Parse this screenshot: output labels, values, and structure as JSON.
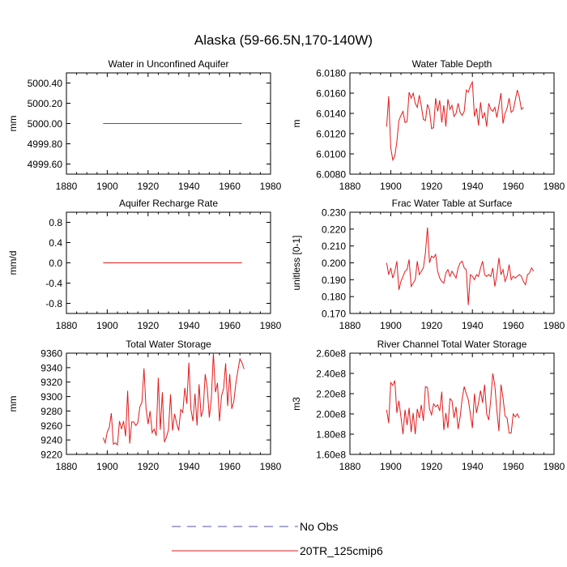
{
  "title": "Alaska (59-66.5N,170-140W)",
  "legend": {
    "entries": [
      {
        "label": "No Obs",
        "style": "dashed",
        "color": "#5555aa"
      },
      {
        "label": "20TR_125cmip6",
        "style": "solid",
        "color": "#e41a1c"
      }
    ]
  },
  "colors": {
    "series": "#e41a1c",
    "obs": "#5555aa",
    "axis": "#000000"
  },
  "chart_data": [
    {
      "type": "line",
      "title": "Water in Unconfined Aquifer",
      "xlabel": "",
      "ylabel": "mm",
      "xlim": [
        1880,
        1980
      ],
      "ylim": [
        4999.5,
        5000.5
      ],
      "xticks": [
        1880,
        1900,
        1920,
        1940,
        1960,
        1980
      ],
      "yticks": [
        4999.6,
        4999.8,
        5000.0,
        5000.2,
        5000.4
      ],
      "ytick_labels": [
        "4999.60",
        "4999.80",
        "5000.00",
        "5000.20",
        "5000.40"
      ],
      "x": [
        1898,
        1966
      ],
      "series": [
        {
          "name": "20TR_125cmip6",
          "values": [
            5000.0,
            5000.0
          ]
        }
      ]
    },
    {
      "type": "line",
      "title": "Water Table Depth",
      "xlabel": "",
      "ylabel": "m",
      "xlim": [
        1880,
        1980
      ],
      "ylim": [
        6.008,
        6.018
      ],
      "xticks": [
        1880,
        1900,
        1920,
        1940,
        1960,
        1980
      ],
      "yticks": [
        6.008,
        6.01,
        6.012,
        6.014,
        6.016,
        6.018
      ],
      "ytick_labels": [
        "6.0080",
        "6.0100",
        "6.0120",
        "6.0140",
        "6.0160",
        "6.0180"
      ],
      "x_start": 1898,
      "series": [
        {
          "name": "20TR_125cmip6",
          "values": [
            6.0127,
            6.0157,
            6.0106,
            6.0094,
            6.0098,
            6.0112,
            6.0133,
            6.0138,
            6.0142,
            6.0131,
            6.0132,
            6.0161,
            6.0155,
            6.016,
            6.015,
            6.0146,
            6.0158,
            6.0147,
            6.0134,
            6.0133,
            6.0149,
            6.0143,
            6.0125,
            6.0126,
            6.0155,
            6.0142,
            6.0153,
            6.0131,
            6.0148,
            6.0127,
            6.0154,
            6.0144,
            6.0148,
            6.0137,
            6.014,
            6.015,
            6.0141,
            6.0138,
            6.0142,
            6.0163,
            6.0161,
            6.0167,
            6.0171,
            6.0137,
            6.0145,
            6.0128,
            6.0151,
            6.0135,
            6.0141,
            6.0127,
            6.015,
            6.0144,
            6.0142,
            6.0146,
            6.0136,
            6.0148,
            6.016,
            6.013,
            6.014,
            6.0145,
            6.0155,
            6.0141,
            6.0143,
            6.0153,
            6.0163,
            6.0156,
            6.0144,
            6.0146
          ]
        }
      ]
    },
    {
      "type": "line",
      "title": "Aquifer Recharge Rate",
      "xlabel": "",
      "ylabel": "mm/d",
      "xlim": [
        1880,
        1980
      ],
      "ylim": [
        -1.0,
        1.0
      ],
      "xticks": [
        1880,
        1900,
        1920,
        1940,
        1960,
        1980
      ],
      "yticks": [
        -0.8,
        -0.4,
        0.0,
        0.4,
        0.8
      ],
      "ytick_labels": [
        "-0.8",
        "-0.4",
        "0.0",
        "0.4",
        "0.8"
      ],
      "x": [
        1898,
        1966
      ],
      "series": [
        {
          "name": "20TR_125cmip6",
          "values": [
            0.0,
            0.0
          ]
        }
      ]
    },
    {
      "type": "line",
      "title": "Frac Water Table at Surface",
      "xlabel": "",
      "ylabel": "unitless [0-1]",
      "xlim": [
        1880,
        1980
      ],
      "ylim": [
        0.17,
        0.23
      ],
      "xticks": [
        1880,
        1900,
        1920,
        1940,
        1960,
        1980
      ],
      "yticks": [
        0.17,
        0.18,
        0.19,
        0.2,
        0.21,
        0.22,
        0.23
      ],
      "ytick_labels": [
        "0.170",
        "0.180",
        "0.190",
        "0.200",
        "0.210",
        "0.220",
        "0.230"
      ],
      "x_start": 1898,
      "series": [
        {
          "name": "20TR_125cmip6",
          "values": [
            0.2,
            0.193,
            0.197,
            0.191,
            0.195,
            0.201,
            0.184,
            0.189,
            0.192,
            0.195,
            0.196,
            0.202,
            0.186,
            0.188,
            0.19,
            0.201,
            0.193,
            0.195,
            0.197,
            0.206,
            0.221,
            0.2,
            0.204,
            0.203,
            0.205,
            0.195,
            0.191,
            0.189,
            0.188,
            0.194,
            0.196,
            0.192,
            0.195,
            0.193,
            0.191,
            0.197,
            0.2,
            0.201,
            0.197,
            0.196,
            0.175,
            0.193,
            0.192,
            0.19,
            0.193,
            0.192,
            0.197,
            0.201,
            0.193,
            0.192,
            0.193,
            0.192,
            0.197,
            0.186,
            0.193,
            0.203,
            0.193,
            0.196,
            0.189,
            0.192,
            0.199,
            0.19,
            0.192,
            0.191,
            0.192,
            0.193,
            0.192,
            0.189,
            0.187,
            0.193,
            0.194,
            0.197,
            0.195
          ]
        }
      ]
    },
    {
      "type": "line",
      "title": "Total Water Storage",
      "xlabel": "",
      "ylabel": "mm",
      "xlim": [
        1880,
        1980
      ],
      "ylim": [
        9220,
        9360
      ],
      "xticks": [
        1880,
        1900,
        1920,
        1940,
        1960,
        1980
      ],
      "yticks": [
        9220,
        9240,
        9260,
        9280,
        9300,
        9320,
        9340,
        9360
      ],
      "ytick_labels": [
        "9220",
        "9240",
        "9260",
        "9280",
        "9300",
        "9320",
        "9340",
        "9360"
      ],
      "x_start": 1898,
      "series": [
        {
          "name": "20TR_125cmip6",
          "values": [
            9243,
            9236,
            9251,
            9257,
            9277,
            9234,
            9236,
            9233,
            9266,
            9255,
            9266,
            9245,
            9308,
            9235,
            9265,
            9265,
            9260,
            9264,
            9286,
            9292,
            9339,
            9284,
            9262,
            9280,
            9250,
            9255,
            9246,
            9326,
            9254,
            9306,
            9237,
            9244,
            9254,
            9303,
            9253,
            9276,
            9263,
            9253,
            9282,
            9278,
            9312,
            9290,
            9347,
            9282,
            9266,
            9304,
            9260,
            9317,
            9272,
            9282,
            9331,
            9312,
            9271,
            9297,
            9360,
            9306,
            9319,
            9266,
            9301,
            9311,
            9346,
            9287,
            9331,
            9283,
            9293,
            9318,
            9336,
            9352,
            9347,
            9338
          ]
        }
      ]
    },
    {
      "type": "line",
      "title": "River Channel Total Water Storage",
      "xlabel": "",
      "ylabel": "m3",
      "xlim": [
        1880,
        1980
      ],
      "ylim": [
        160000000,
        260000000
      ],
      "xticks": [
        1880,
        1900,
        1920,
        1940,
        1960,
        1980
      ],
      "yticks": [
        160000000,
        180000000,
        200000000,
        220000000,
        240000000,
        260000000
      ],
      "ytick_labels": [
        "1.60e8",
        "1.80e8",
        "2.00e8",
        "2.20e8",
        "2.40e8",
        "2.60e8"
      ],
      "x_start": 1898,
      "series": [
        {
          "name": "20TR_125cmip6",
          "values": [
            204000000,
            191000000,
            231000000,
            228000000,
            233000000,
            201000000,
            213000000,
            197000000,
            180000000,
            204000000,
            189000000,
            206000000,
            182000000,
            201000000,
            180000000,
            205000000,
            196000000,
            209000000,
            193000000,
            227000000,
            226000000,
            205000000,
            199000000,
            210000000,
            207000000,
            209000000,
            203000000,
            222000000,
            184000000,
            201000000,
            186000000,
            215000000,
            213000000,
            196000000,
            207000000,
            185000000,
            197000000,
            215000000,
            227000000,
            220000000,
            214000000,
            200000000,
            186000000,
            220000000,
            201000000,
            211000000,
            223000000,
            211000000,
            229000000,
            200000000,
            194000000,
            214000000,
            240000000,
            228000000,
            203000000,
            183000000,
            229000000,
            216000000,
            198000000,
            196000000,
            181000000,
            181000000,
            200000000,
            197000000,
            200000000,
            196000000
          ]
        }
      ]
    }
  ]
}
